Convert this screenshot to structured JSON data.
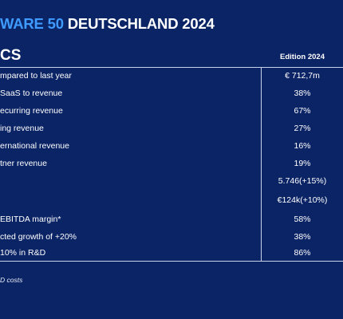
{
  "header": {
    "title_accent": "WARE 50",
    "title_rest": " DEUTSCHLAND 2024",
    "subtitle": "CS",
    "column_heading": "Edition 2024"
  },
  "rows": [
    {
      "label": "mpared to last year",
      "value": "€ 712,7m"
    },
    {
      "label": "SaaS to revenue",
      "value": "38%"
    },
    {
      "label": "ecurring revenue",
      "value": "67%"
    },
    {
      "label": "ing revenue",
      "value": "27%"
    },
    {
      "label": "ernational revenue",
      "value": "16%"
    },
    {
      "label": "tner revenue",
      "value": "19%"
    },
    {
      "label": "",
      "value": "5.746(+15%)"
    },
    {
      "label": "",
      "value": "€124k(+10%)"
    },
    {
      "label": "EBITDA margin*",
      "value": "58%"
    },
    {
      "label": "cted growth of +20%",
      "value": "38%"
    },
    {
      "label": "10% in R&D",
      "value": "86%"
    }
  ],
  "footnote": "D costs",
  "colors": {
    "background": "#0b2466",
    "accent": "#3f9bff",
    "text": "#ffffff",
    "rule": "#c9d3ea"
  }
}
